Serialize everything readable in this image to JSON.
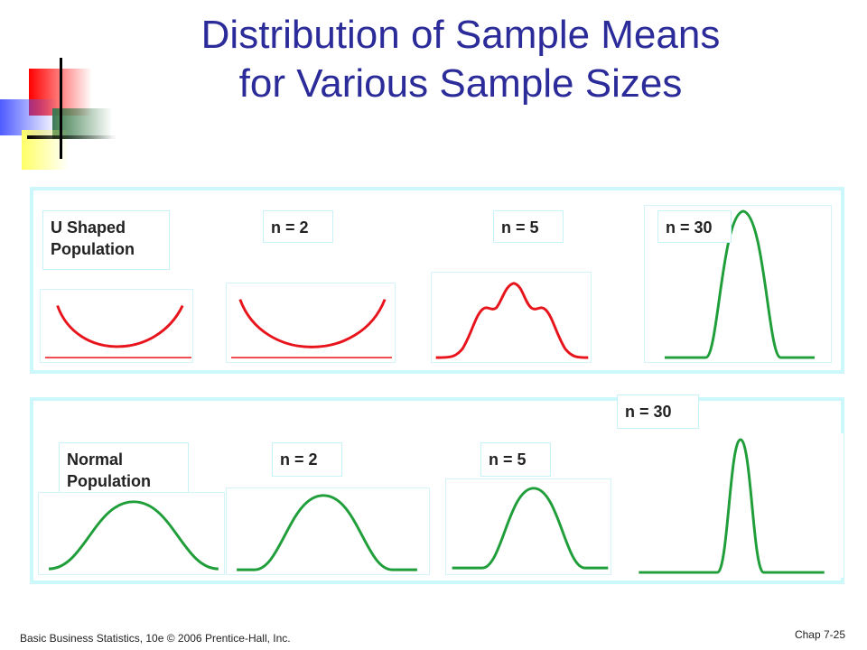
{
  "slide": {
    "title_line1": "Distribution of Sample Means",
    "title_line2": "for Various Sample Sizes",
    "footer_left": "Basic Business Statistics, 10e © 2006 Prentice-Hall, Inc.",
    "footer_right": "Chap 7-25"
  },
  "colors": {
    "title": "#2b2b9a",
    "u_shaped_curve": "#e8141c",
    "normal_curve": "#1f9e3a",
    "panel_border": "#ccf7fb"
  },
  "top_panel": {
    "labels": {
      "population_line1": "U Shaped",
      "population_line2": "Population",
      "n2": "n = 2",
      "n5": "n = 5",
      "n30": "n = 30"
    }
  },
  "bottom_panel": {
    "labels": {
      "population_line1": "Normal",
      "population_line2": "Population",
      "n2": "n = 2",
      "n5": "n = 5",
      "n30": "n = 30"
    }
  }
}
